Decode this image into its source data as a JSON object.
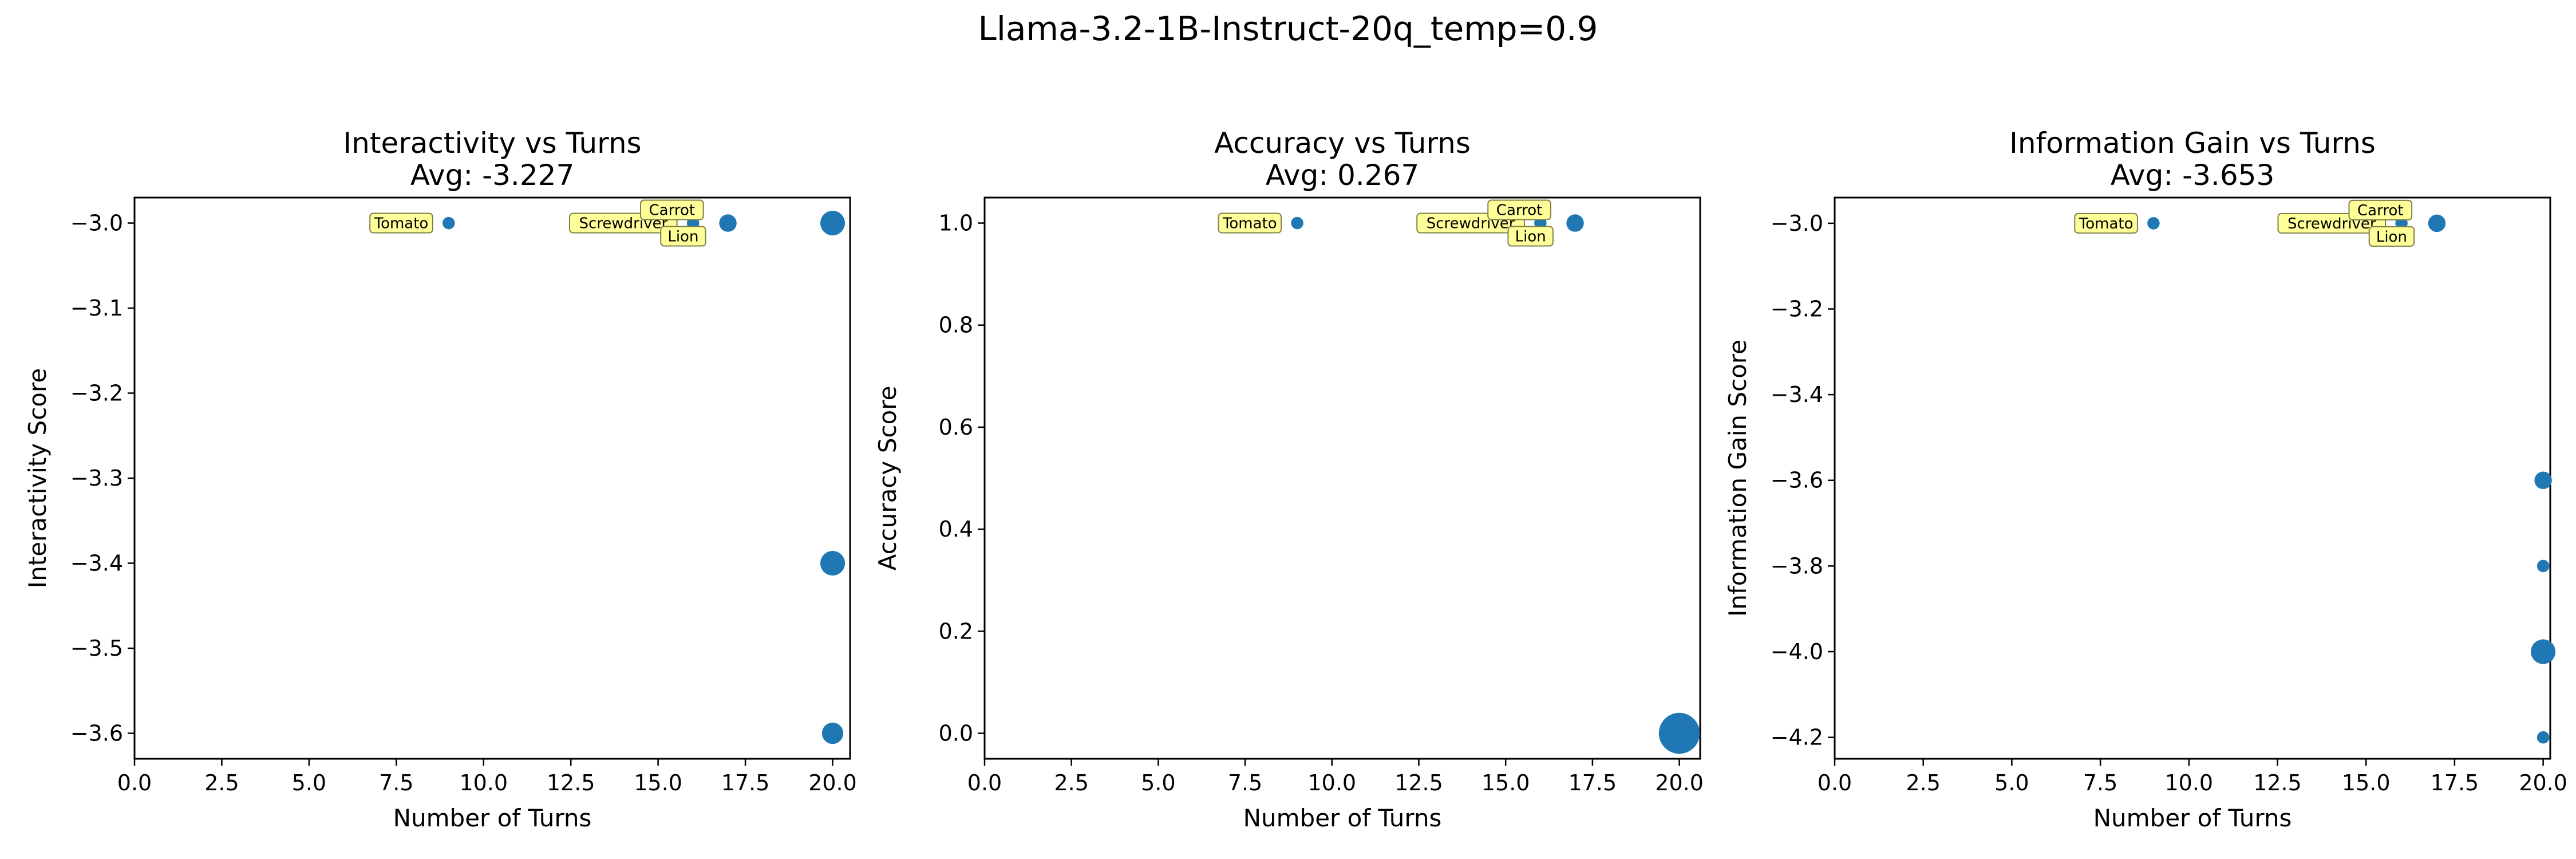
{
  "figure_title": "Llama-3.2-1B-Instruct-20q_temp=0.9",
  "colors": {
    "marker": "#1f77b4",
    "annotation_fill": "#ffff99",
    "annotation_border": "#7f7f4c",
    "axes": "#000000"
  },
  "chart_data": [
    {
      "type": "scatter",
      "title": "Interactivity vs Turns",
      "subtitle": "Avg: -3.227",
      "xlabel": "Number of Turns",
      "ylabel": "Interactivity Score",
      "xlim": [
        0,
        20.5
      ],
      "ylim": [
        -3.63,
        -2.97
      ],
      "xticks": [
        0,
        2.5,
        5,
        7.5,
        10,
        12.5,
        15,
        17.5,
        20
      ],
      "xtick_labels": [
        "0.0",
        "2.5",
        "5.0",
        "7.5",
        "10.0",
        "12.5",
        "15.0",
        "17.5",
        "20.0"
      ],
      "yticks": [
        -3.0,
        -3.1,
        -3.2,
        -3.3,
        -3.4,
        -3.5,
        -3.6
      ],
      "ytick_labels": [
        "−3.0",
        "−3.1",
        "−3.2",
        "−3.3",
        "−3.4",
        "−3.5",
        "−3.6"
      ],
      "grid": false,
      "points": [
        {
          "x": 9,
          "y": -3.0,
          "size": 1
        },
        {
          "x": 16,
          "y": -3.0,
          "size": 1
        },
        {
          "x": 17,
          "y": -3.0,
          "size": 2
        },
        {
          "x": 20,
          "y": -3.0,
          "size": 4
        },
        {
          "x": 20,
          "y": -3.4,
          "size": 4
        },
        {
          "x": 20,
          "y": -3.6,
          "size": 3
        }
      ],
      "annotations": [
        {
          "text": "Tomato",
          "x": 9,
          "y": -3.0,
          "pos": "left"
        },
        {
          "text": "Screwdriver",
          "x": 16,
          "y": -3.0,
          "pos": "left"
        },
        {
          "text": "Carrot",
          "x": 16,
          "y": -3.0,
          "pos": "above-left"
        },
        {
          "text": "Lion",
          "x": 16,
          "y": -3.0,
          "pos": "below-left"
        }
      ]
    },
    {
      "type": "scatter",
      "title": "Accuracy vs Turns",
      "subtitle": "Avg: 0.267",
      "xlabel": "Number of Turns",
      "ylabel": "Accuracy Score",
      "xlim": [
        0,
        20.6
      ],
      "ylim": [
        -0.05,
        1.05
      ],
      "xticks": [
        0,
        2.5,
        5,
        7.5,
        10,
        12.5,
        15,
        17.5,
        20
      ],
      "xtick_labels": [
        "0.0",
        "2.5",
        "5.0",
        "7.5",
        "10.0",
        "12.5",
        "15.0",
        "17.5",
        "20.0"
      ],
      "yticks": [
        0,
        0.2,
        0.4,
        0.6,
        0.8,
        1.0
      ],
      "ytick_labels": [
        "0.0",
        "0.2",
        "0.4",
        "0.6",
        "0.8",
        "1.0"
      ],
      "grid": false,
      "points": [
        {
          "x": 9,
          "y": 1.0,
          "size": 1
        },
        {
          "x": 16,
          "y": 1.0,
          "size": 1
        },
        {
          "x": 17,
          "y": 1.0,
          "size": 2
        },
        {
          "x": 20,
          "y": 0.0,
          "size": 11
        }
      ],
      "annotations": [
        {
          "text": "Tomato",
          "x": 9,
          "y": 1.0,
          "pos": "left"
        },
        {
          "text": "Screwdriver",
          "x": 16,
          "y": 1.0,
          "pos": "left"
        },
        {
          "text": "Carrot",
          "x": 16,
          "y": 1.0,
          "pos": "above-left"
        },
        {
          "text": "Lion",
          "x": 16,
          "y": 1.0,
          "pos": "below-left"
        }
      ]
    },
    {
      "type": "scatter",
      "title": "Information Gain vs Turns",
      "subtitle": "Avg: -3.653",
      "xlabel": "Number of Turns",
      "ylabel": "Information Gain Score",
      "xlim": [
        0,
        20.2
      ],
      "ylim": [
        -4.25,
        -2.94
      ],
      "xticks": [
        0,
        2.5,
        5,
        7.5,
        10,
        12.5,
        15,
        17.5,
        20
      ],
      "xtick_labels": [
        "0.0",
        "2.5",
        "5.0",
        "7.5",
        "10.0",
        "12.5",
        "15.0",
        "17.5",
        "20.0"
      ],
      "yticks": [
        -3.0,
        -3.2,
        -3.4,
        -3.6,
        -3.8,
        -4.0,
        -4.2
      ],
      "ytick_labels": [
        "−3.0",
        "−3.2",
        "−3.4",
        "−3.6",
        "−3.8",
        "−4.0",
        "−4.2"
      ],
      "grid": false,
      "points": [
        {
          "x": 9,
          "y": -3.0,
          "size": 1
        },
        {
          "x": 16,
          "y": -3.0,
          "size": 1
        },
        {
          "x": 17,
          "y": -3.0,
          "size": 2
        },
        {
          "x": 20,
          "y": -3.6,
          "size": 2
        },
        {
          "x": 20,
          "y": -3.8,
          "size": 1
        },
        {
          "x": 20,
          "y": -4.0,
          "size": 4
        },
        {
          "x": 20,
          "y": -4.2,
          "size": 1
        }
      ],
      "annotations": [
        {
          "text": "Tomato",
          "x": 9,
          "y": -3.0,
          "pos": "left"
        },
        {
          "text": "Screwdriver",
          "x": 16,
          "y": -3.0,
          "pos": "left"
        },
        {
          "text": "Carrot",
          "x": 16,
          "y": -3.0,
          "pos": "above-left"
        },
        {
          "text": "Lion",
          "x": 16,
          "y": -3.0,
          "pos": "below-left"
        }
      ]
    }
  ]
}
